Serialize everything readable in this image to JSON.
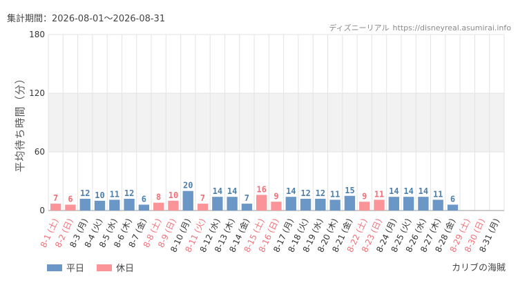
{
  "header": {
    "period_label": "集計期間：2026-08-01～2026-08-31",
    "site_name": "ディズニーリアル",
    "site_url": "https://disneyreal.asumirai.info"
  },
  "legend": {
    "weekday_label": "平日",
    "holiday_label": "休日"
  },
  "area_name": "カリブの海賊",
  "colors": {
    "weekday": "#6a97c5",
    "holiday": "#fa9499",
    "weekday_text": "#4d7fae",
    "holiday_text": "#f36f77",
    "band": "#f2f2f2",
    "grid": "#e3e3e3"
  },
  "chart_data": {
    "type": "bar",
    "ylabel": "平均待ち時間（分）",
    "ylim": [
      0,
      180
    ],
    "yticks": [
      0,
      60,
      120,
      180
    ],
    "grid": true,
    "legend_position": "bottom-left",
    "categories": [
      "8-1 (土)",
      "8-2 (日)",
      "8-3 (月)",
      "8-4 (火)",
      "8-5 (水)",
      "8-6 (木)",
      "8-7 (金)",
      "8-8 (土)",
      "8-9 (日)",
      "8-10 (月)",
      "8-11 (火)",
      "8-12 (水)",
      "8-13 (木)",
      "8-14 (金)",
      "8-15 (土)",
      "8-16 (日)",
      "8-17 (月)",
      "8-18 (火)",
      "8-19 (水)",
      "8-20 (木)",
      "8-21 (金)",
      "8-22 (土)",
      "8-23 (日)",
      "8-24 (月)",
      "8-25 (火)",
      "8-26 (水)",
      "8-27 (木)",
      "8-28 (金)",
      "8-29 (土)",
      "8-30 (日)",
      "8-31 (月)"
    ],
    "values": [
      7,
      6,
      12,
      10,
      11,
      12,
      6,
      8,
      10,
      20,
      7,
      14,
      14,
      7,
      16,
      9,
      14,
      12,
      12,
      11,
      15,
      9,
      11,
      14,
      14,
      14,
      11,
      6,
      null,
      null,
      null
    ],
    "holiday": [
      true,
      true,
      false,
      false,
      false,
      false,
      false,
      true,
      true,
      false,
      true,
      false,
      false,
      false,
      true,
      true,
      false,
      false,
      false,
      false,
      false,
      true,
      true,
      false,
      false,
      false,
      false,
      false,
      true,
      true,
      false
    ]
  }
}
